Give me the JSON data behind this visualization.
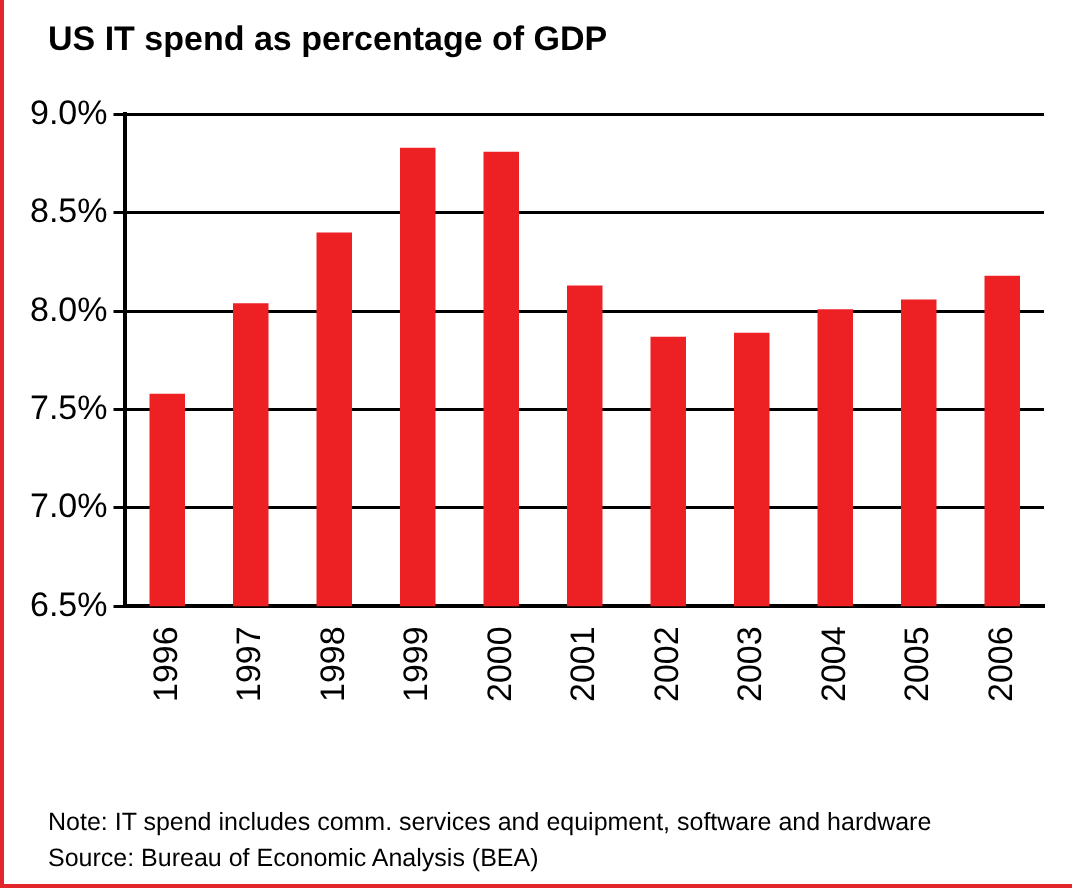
{
  "chart_data": {
    "type": "bar",
    "title": "US IT spend as percentage of GDP",
    "categories": [
      "1996",
      "1997",
      "1998",
      "1999",
      "2000",
      "2001",
      "2002",
      "2003",
      "2004",
      "2005",
      "2006"
    ],
    "values": [
      7.58,
      8.04,
      8.4,
      8.83,
      8.81,
      8.13,
      7.87,
      7.89,
      8.01,
      8.06,
      8.18
    ],
    "color": "#ed2024",
    "ylim": [
      6.5,
      9.0
    ],
    "yticks": [
      {
        "value": 6.5,
        "label": "6.5%"
      },
      {
        "value": 7.0,
        "label": "7.0%"
      },
      {
        "value": 7.5,
        "label": "7.5%"
      },
      {
        "value": 8.0,
        "label": "8.0%"
      },
      {
        "value": 8.5,
        "label": "8.5%"
      },
      {
        "value": 9.0,
        "label": "9.0%"
      }
    ],
    "grid": "y",
    "legend": false,
    "annotations": [
      "Note: IT spend includes comm. services and equipment, software and hardware",
      "Source: Bureau of Economic Analysis (BEA)"
    ]
  }
}
